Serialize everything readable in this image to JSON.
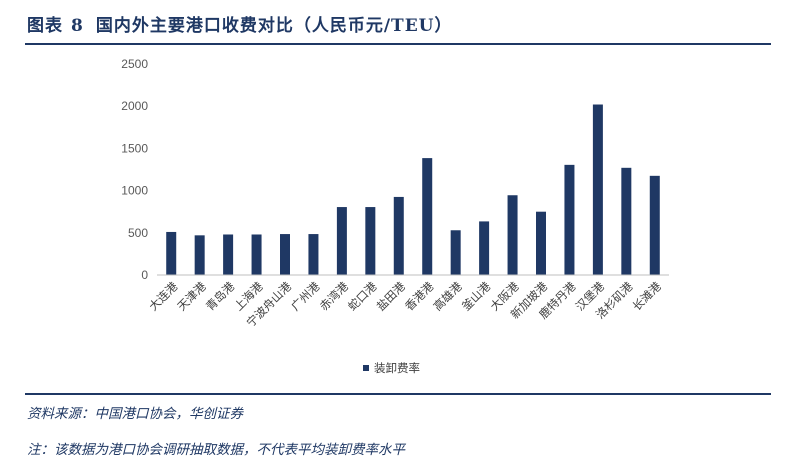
{
  "header": {
    "figure_label": "图表",
    "figure_number": "8",
    "title": "国内外主要港口收费对比（人民币元/TEU）"
  },
  "footer": {
    "source": "资料来源：中国港口协会，华创证券",
    "note": "注：该数据为港口协会调研抽取数据，不代表平均装卸费率水平"
  },
  "colors": {
    "bar": "#1f3864",
    "axis": "#bfbfbf",
    "accent": "#1f3864"
  },
  "chart_data": {
    "type": "bar",
    "categories": [
      "大连港",
      "天津港",
      "青岛港",
      "上海港",
      "宁波舟山港",
      "广州港",
      "赤湾港",
      "蛇口港",
      "盐田港",
      "香港港",
      "高雄港",
      "釜山港",
      "大阪港",
      "新加坡港",
      "鹿特丹港",
      "汉堡港",
      "洛杉矶港",
      "长滩港"
    ],
    "series": [
      {
        "name": "装卸费率",
        "values": [
          510,
          470,
          480,
          480,
          485,
          485,
          805,
          805,
          925,
          1385,
          530,
          635,
          945,
          750,
          1305,
          2020,
          1270,
          1175
        ]
      }
    ],
    "yticks": [
      0,
      500,
      1000,
      1500,
      2000,
      2500
    ],
    "ylim": [
      0,
      2500
    ],
    "grid": false,
    "legend": "bottom"
  }
}
